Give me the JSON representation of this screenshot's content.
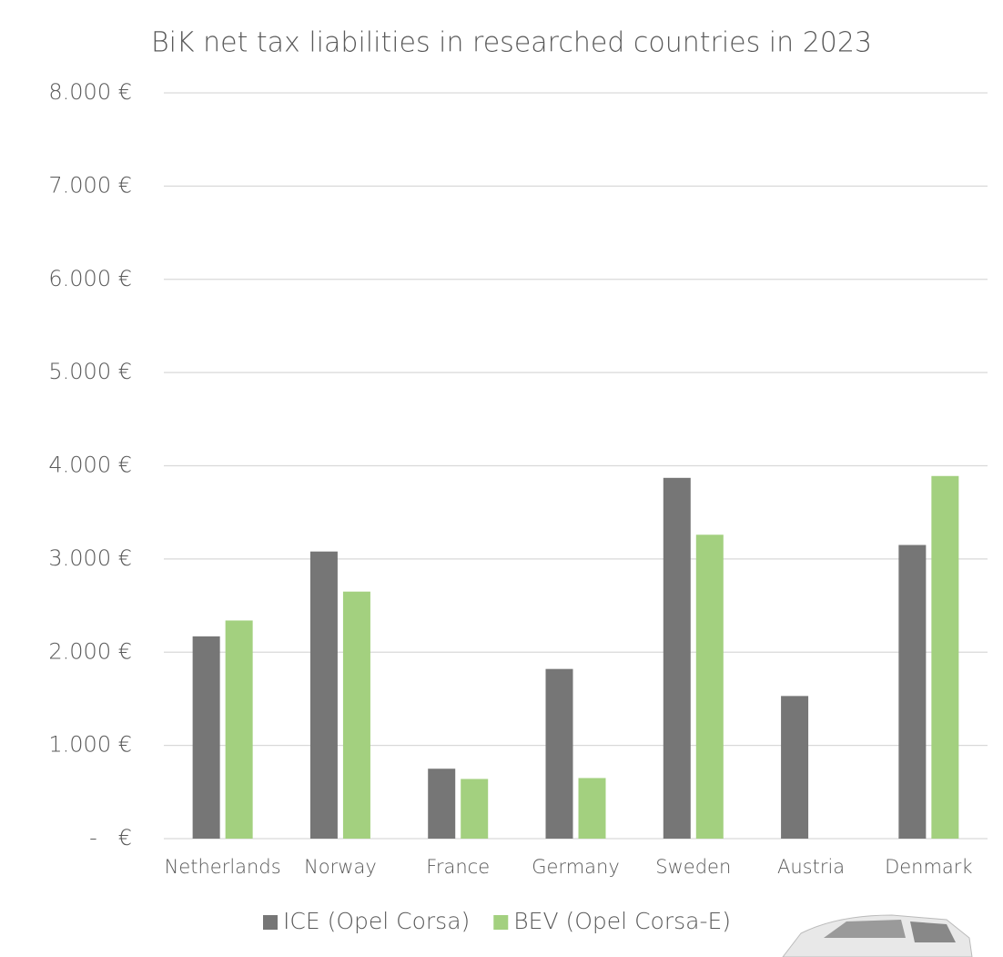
{
  "chart_data": {
    "type": "bar",
    "title": "BiK net tax liabilities in researched countries in 2023",
    "categories": [
      "Netherlands",
      "Norway",
      "France",
      "Germany",
      "Sweden",
      "Austria",
      "Denmark"
    ],
    "series": [
      {
        "name": "ICE (Opel Corsa)",
        "color": "#767676",
        "values": [
          2170,
          3080,
          750,
          1820,
          3870,
          1530,
          3150
        ]
      },
      {
        "name": "BEV (Opel Corsa-E)",
        "color": "#a3d07f",
        "values": [
          2340,
          2650,
          640,
          650,
          3260,
          null,
          3890
        ]
      }
    ],
    "ylim": [
      0,
      8000
    ],
    "yticks": [
      {
        "value": 0,
        "label": "-   €"
      },
      {
        "value": 1000,
        "label": "1.000 €"
      },
      {
        "value": 2000,
        "label": "2.000 €"
      },
      {
        "value": 3000,
        "label": "3.000 €"
      },
      {
        "value": 4000,
        "label": "4.000 €"
      },
      {
        "value": 5000,
        "label": "5.000 €"
      },
      {
        "value": 6000,
        "label": "6.000 €"
      },
      {
        "value": 7000,
        "label": "7.000 €"
      },
      {
        "value": 8000,
        "label": "8.000 €"
      }
    ],
    "grid": true,
    "legend": "bottom"
  }
}
